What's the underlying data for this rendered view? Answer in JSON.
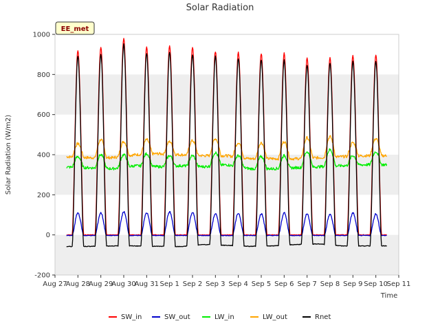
{
  "chart_data": {
    "type": "line",
    "title": "Solar Radiation",
    "xlabel": "Time",
    "ylabel": "Solar Radiation (W/m2)",
    "site_label": "EE_met",
    "ylim": [
      -200,
      1000
    ],
    "yticks": [
      -200,
      0,
      200,
      400,
      600,
      800,
      1000
    ],
    "x_categories": [
      "Aug 27",
      "Aug 28",
      "Aug 29",
      "Aug 30",
      "Aug 31",
      "Sep 1",
      "Sep 2",
      "Sep 3",
      "Sep 4",
      "Sep 5",
      "Sep 6",
      "Sep 7",
      "Sep 8",
      "Sep 9",
      "Sep 10",
      "Sep 11"
    ],
    "grid": "horizontal bands",
    "legend_position": "bottom",
    "series": [
      {
        "name": "SW_in",
        "color": "#ff0000",
        "daily_peak": [
          920,
          935,
          980,
          935,
          945,
          935,
          915,
          910,
          905,
          905,
          880,
          885,
          895,
          895
        ],
        "night": [
          0,
          0,
          0,
          0,
          0,
          0,
          0,
          0,
          0,
          0,
          0,
          0,
          0,
          0
        ]
      },
      {
        "name": "SW_out",
        "color": "#0000cc",
        "daily_peak": [
          110,
          110,
          115,
          110,
          115,
          112,
          105,
          108,
          105,
          110,
          105,
          102,
          110,
          105
        ],
        "night": [
          -3,
          -3,
          -3,
          -3,
          -3,
          -3,
          -3,
          -3,
          -3,
          -3,
          -3,
          -3,
          -3,
          -3
        ]
      },
      {
        "name": "LW_in",
        "color": "#00ee00",
        "daily_peak": [
          390,
          400,
          400,
          405,
          395,
          395,
          410,
          395,
          390,
          395,
          415,
          425,
          395,
          415
        ],
        "night": [
          338,
          335,
          330,
          345,
          340,
          345,
          340,
          350,
          330,
          330,
          335,
          340,
          345,
          350
        ]
      },
      {
        "name": "LW_out",
        "color": "#ffa500",
        "daily_peak": [
          455,
          475,
          465,
          475,
          465,
          470,
          480,
          460,
          460,
          465,
          485,
          490,
          460,
          480
        ],
        "night": [
          390,
          385,
          385,
          400,
          405,
          400,
          395,
          395,
          380,
          380,
          380,
          385,
          390,
          395
        ]
      },
      {
        "name": "Rnet",
        "color": "#000000",
        "daily_peak": [
          890,
          900,
          950,
          905,
          910,
          900,
          890,
          880,
          875,
          870,
          845,
          855,
          865,
          865
        ],
        "night": [
          -58,
          -57,
          -55,
          -55,
          -57,
          -58,
          -48,
          -52,
          -57,
          -55,
          -48,
          -45,
          -55,
          -55
        ]
      }
    ]
  }
}
